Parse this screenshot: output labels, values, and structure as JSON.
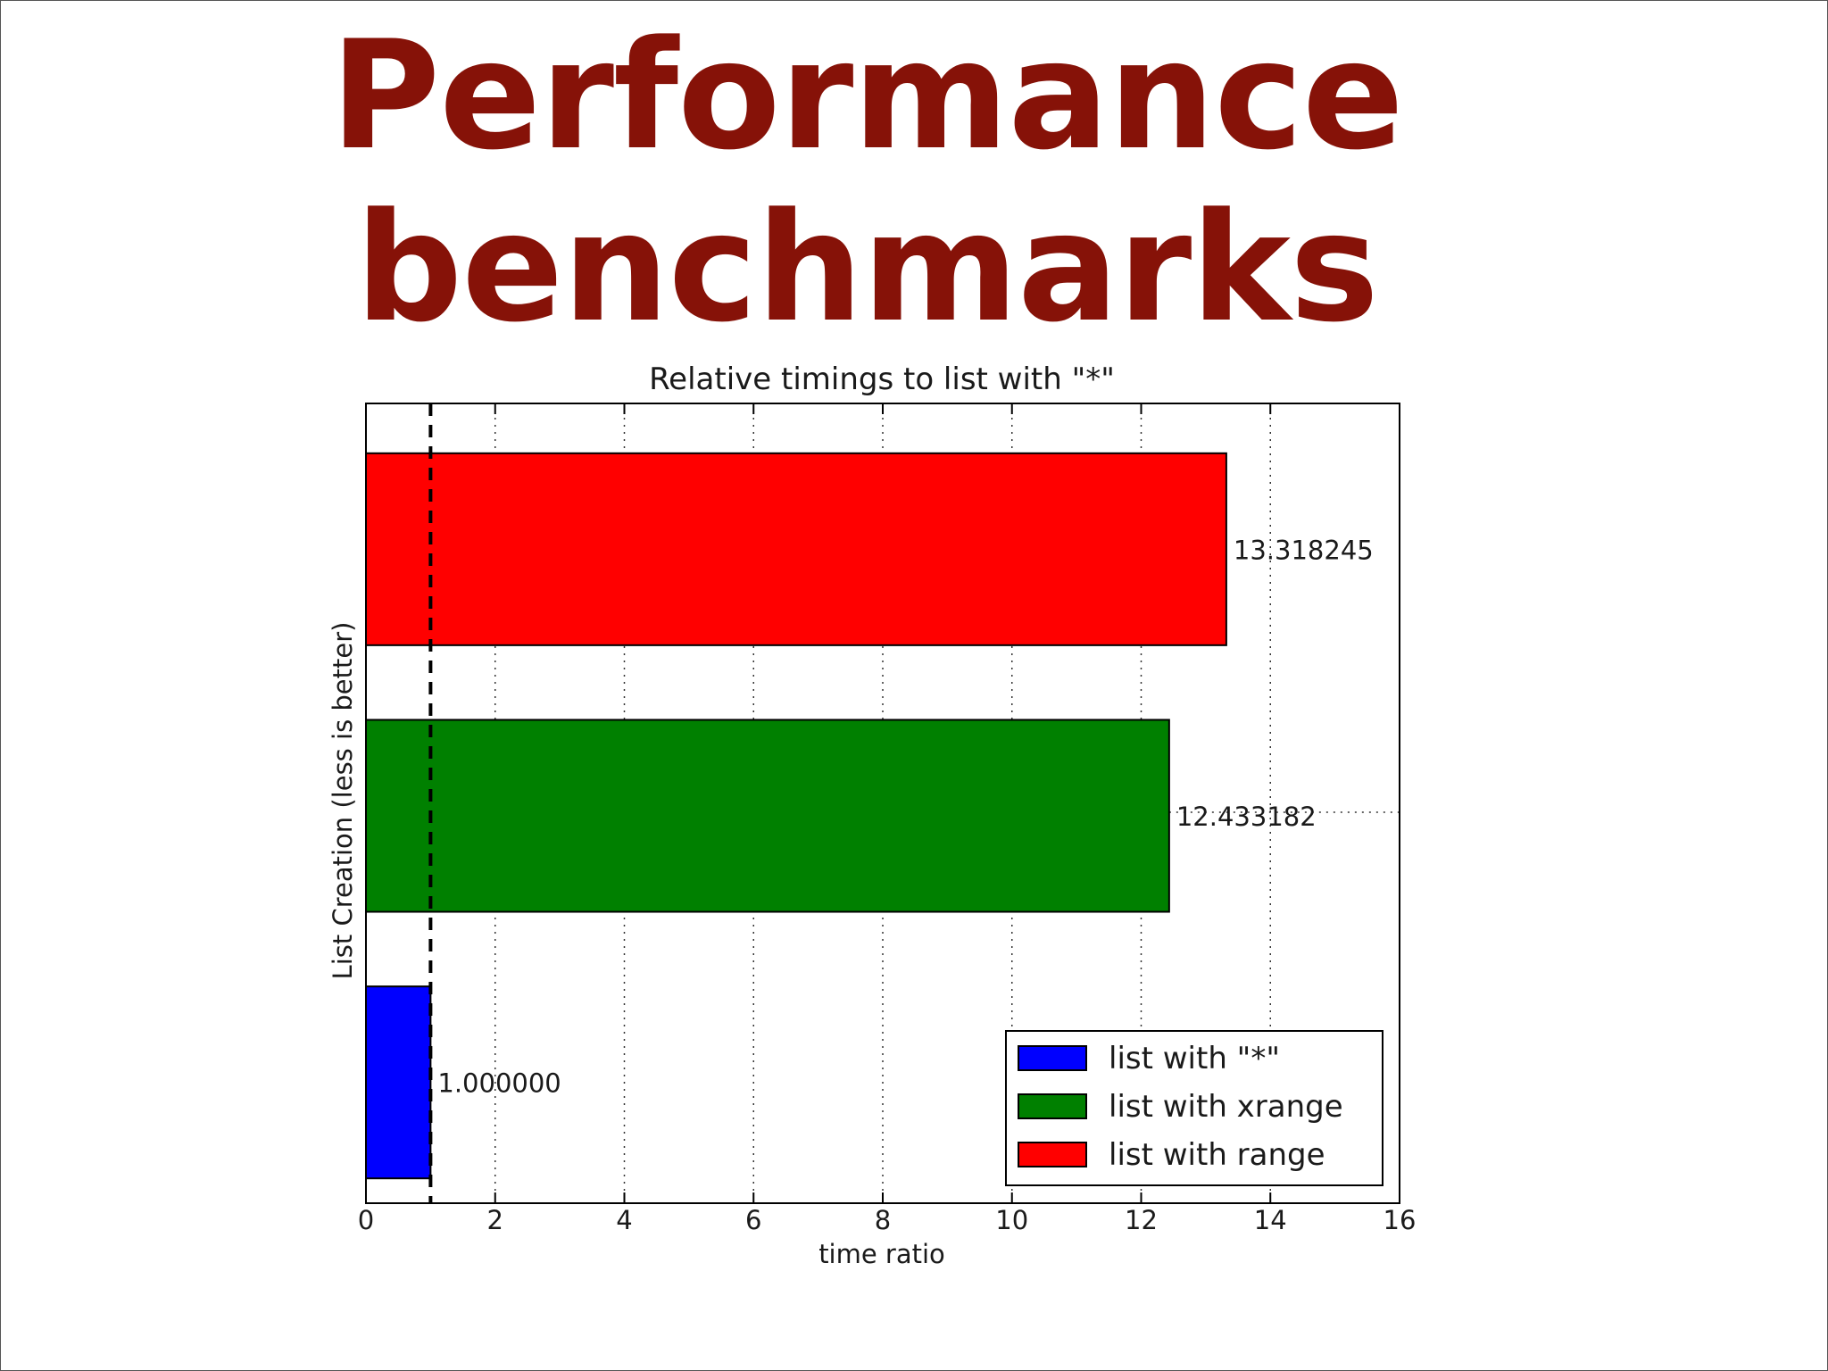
{
  "slide": {
    "title_line_1": "Performance",
    "title_line_2": "benchmarks"
  },
  "colors": {
    "title": "#861208",
    "list_star": "#0000ff",
    "list_xrange": "#008000",
    "list_range": "#ff0000"
  },
  "chart_data": {
    "type": "bar",
    "orientation": "horizontal",
    "title": "Relative timings to list with \"*\"",
    "xlabel": "time ratio",
    "ylabel": "List Creation (less is better)",
    "xlim": [
      0,
      16
    ],
    "xticks": [
      0,
      2,
      4,
      6,
      8,
      10,
      12,
      14,
      16
    ],
    "x_grid": "dotted",
    "reference_line": {
      "x": 1,
      "style": "dashed"
    },
    "legend_position": "bottom-right",
    "series": [
      {
        "name": "list with \"*\"",
        "value": 1.0,
        "label": "1.000000",
        "color": "#0000ff"
      },
      {
        "name": "list with xrange",
        "value": 12.433182,
        "label": "12.433182",
        "color": "#008000"
      },
      {
        "name": "list with range",
        "value": 13.318245,
        "label": "13.318245",
        "color": "#ff0000"
      }
    ]
  }
}
